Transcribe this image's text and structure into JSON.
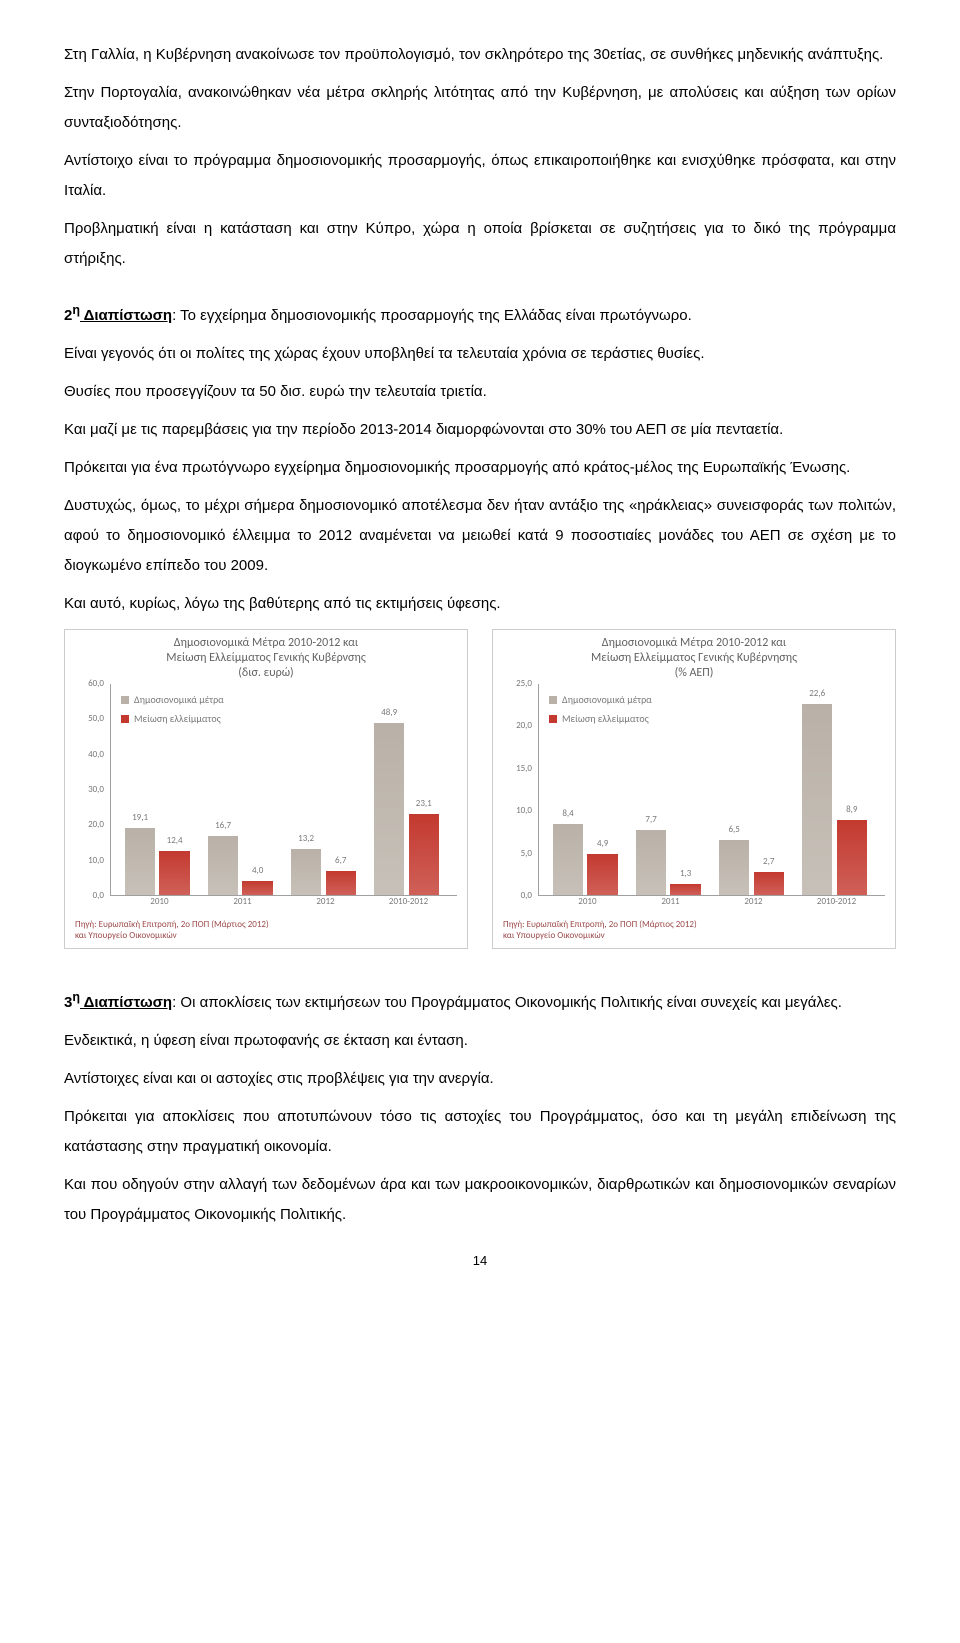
{
  "text": {
    "p1": "Στη Γαλλία, η Κυβέρνηση ανακοίνωσε τον προϋπολογισμό, τον σκληρότερο της 30ετίας, σε συνθήκες μηδενικής ανάπτυξης.",
    "p2": "Στην Πορτογαλία, ανακοινώθηκαν νέα μέτρα σκληρής λιτότητας από την Κυβέρνηση, με απολύσεις και αύξηση των ορίων συνταξιοδότησης.",
    "p3": "Αντίστοιχο είναι το πρόγραμμα δημοσιονομικής προσαρμογής, όπως επικαιροποιήθηκε και ενισχύθηκε πρόσφατα, και στην Ιταλία.",
    "p4": "Προβληματική είναι η κατάσταση και στην Κύπρο, χώρα η οποία βρίσκεται σε συζητήσεις για το δικό της πρόγραμμα στήριξης.",
    "p5a": "2",
    "p5sup": "η",
    "p5b": " Διαπίστωση",
    "p5c": ": Το εγχείρημα δημοσιονομικής προσαρμογής της Ελλάδας είναι πρωτόγνωρο.",
    "p6": "Είναι γεγονός ότι οι πολίτες της χώρας έχουν υποβληθεί τα τελευταία χρόνια σε τεράστιες θυσίες.",
    "p7": "Θυσίες που προσεγγίζουν τα 50 δισ. ευρώ την τελευταία τριετία.",
    "p8": "Και μαζί με τις παρεμβάσεις για την περίοδο 2013-2014 διαμορφώνονται στο 30% του ΑΕΠ σε μία πενταετία.",
    "p9": "Πρόκειται για ένα πρωτόγνωρο εγχείρημα δημοσιονομικής προσαρμογής από κράτος-μέλος της Ευρωπαϊκής Ένωσης.",
    "p10": "Δυστυχώς, όμως, το μέχρι σήμερα δημοσιονομικό αποτέλεσμα δεν ήταν αντάξιο της «ηράκλειας» συνεισφοράς των πολιτών, αφού το δημοσιονομικό έλλειμμα το 2012 αναμένεται να μειωθεί κατά 9 ποσοστιαίες μονάδες του ΑΕΠ σε σχέση με το διογκωμένο επίπεδο του 2009.",
    "p11": "Και αυτό, κυρίως, λόγω της βαθύτερης από τις εκτιμήσεις ύφεσης.",
    "p12a": "3",
    "p12sup": "η",
    "p12b": " Διαπίστωση",
    "p12c": ": Οι αποκλίσεις των εκτιμήσεων του Προγράμματος Οικονομικής Πολιτικής είναι συνεχείς και μεγάλες.",
    "p13": "Ενδεικτικά, η ύφεση είναι πρωτοφανής σε έκταση και ένταση.",
    "p14": "Αντίστοιχες είναι και οι αστοχίες στις προβλέψεις για την ανεργία.",
    "p15": "Πρόκειται για αποκλίσεις που αποτυπώνουν τόσο τις αστοχίες του Προγράμματος, όσο και τη μεγάλη επιδείνωση της κατάστασης στην πραγματική οικονομία.",
    "p16": "Και που οδηγούν στην αλλαγή των δεδομένων άρα και των μακροοικονομικών, διαρθρωτικών και δημοσιονομικών σεναρίων του Προγράμματος Οικονομικής Πολιτικής."
  },
  "chart1": {
    "title": "Δημοσιονομικά Μέτρα 2010-2012 και\nΜείωση Ελλείμματος Γενικής Κυβέρνσης\n(δισ. ευρώ)",
    "legend": {
      "a": "Δημοσιονομικά μέτρα",
      "b": "Μείωση ελλείμματος"
    },
    "source": "Πηγή: Ευρωπαϊκή Επιτροπή, 2ο ΠΟΠ (Μάρτιος 2012)\nκαι Υπουργείο Οικονομικών",
    "ymax": 60,
    "ystep": 10,
    "ycats": [
      "0,0",
      "10,0",
      "20,0",
      "30,0",
      "40,0",
      "50,0",
      "60,0"
    ],
    "categories": [
      "2010",
      "2011",
      "2012",
      "2010-2012"
    ],
    "series": {
      "a": {
        "color": "#b9b1a7",
        "values": [
          19.1,
          16.7,
          13.2,
          48.9
        ],
        "labels": [
          "19,1",
          "16,7",
          "13,2",
          "48,9"
        ]
      },
      "b": {
        "color": "#c3392f",
        "values": [
          12.4,
          4.0,
          6.7,
          23.1
        ],
        "labels": [
          "12,4",
          "4,0",
          "6,7",
          "23,1"
        ]
      }
    }
  },
  "chart2": {
    "title": "Δημοσιονομικά Μέτρα 2010-2012 και\nΜείωση Ελλείμματος Γενικής Κυβέρνησης\n(% ΑΕΠ)",
    "legend": {
      "a": "Δημοσιονομικά μέτρα",
      "b": "Μείωση ελλείμματος"
    },
    "source": "Πηγή: Ευρωπαϊκή Επιτροπή, 2ο ΠΟΠ (Μάρτιος 2012)\nκαι Υπουργείο Οικονομικών",
    "ymax": 25,
    "ystep": 5,
    "ycats": [
      "0,0",
      "5,0",
      "10,0",
      "15,0",
      "20,0",
      "25,0"
    ],
    "categories": [
      "2010",
      "2011",
      "2012",
      "2010-2012"
    ],
    "series": {
      "a": {
        "color": "#b9b1a7",
        "values": [
          8.4,
          7.7,
          6.5,
          22.6
        ],
        "labels": [
          "8,4",
          "7,7",
          "6,5",
          "22,6"
        ]
      },
      "b": {
        "color": "#c3392f",
        "values": [
          4.9,
          1.3,
          2.7,
          8.9
        ],
        "labels": [
          "4,9",
          "1,3",
          "2,7",
          "8,9"
        ]
      }
    }
  },
  "pagenum": "14"
}
